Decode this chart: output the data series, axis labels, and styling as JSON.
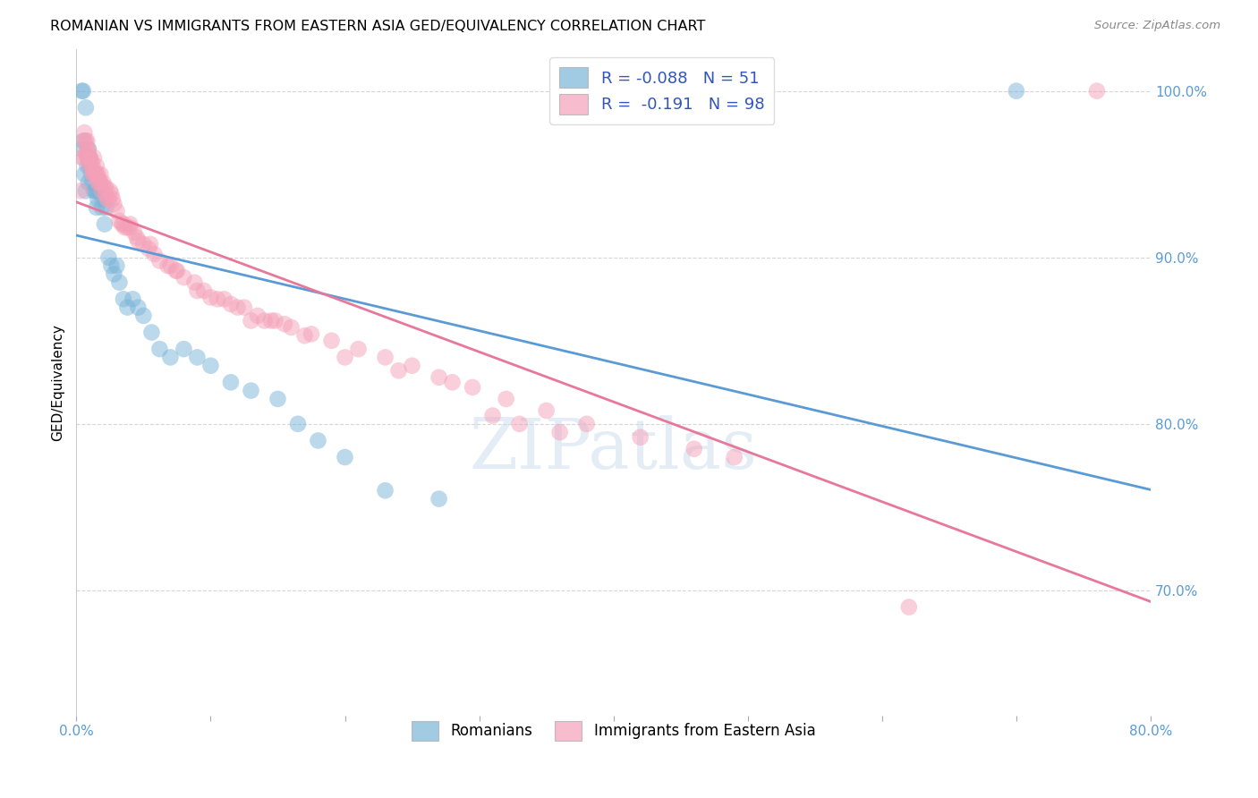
{
  "title": "ROMANIAN VS IMMIGRANTS FROM EASTERN ASIA GED/EQUIVALENCY CORRELATION CHART",
  "source": "Source: ZipAtlas.com",
  "ylabel": "GED/Equivalency",
  "xlabel": "",
  "xlim": [
    0.0,
    0.8
  ],
  "ylim": [
    0.625,
    1.025
  ],
  "yticks": [
    0.7,
    0.8,
    0.9,
    1.0
  ],
  "yticklabels": [
    "70.0%",
    "80.0%",
    "90.0%",
    "100.0%"
  ],
  "xtick_left_label": "0.0%",
  "xtick_right_label": "80.0%",
  "legend1_r": "-0.088",
  "legend1_n": "51",
  "legend2_r": "-0.191",
  "legend2_n": "98",
  "legend_sub1": "Romanians",
  "legend_sub2": "Immigrants from Eastern Asia",
  "blue_color": "#7ab4d8",
  "pink_color": "#f4a0b8",
  "blue_line_color": "#5b9bd5",
  "pink_line_color": "#e8789a",
  "watermark": "ZIPatlas",
  "blue_x": [
    0.004,
    0.004,
    0.005,
    0.005,
    0.006,
    0.007,
    0.007,
    0.008,
    0.008,
    0.009,
    0.009,
    0.01,
    0.01,
    0.011,
    0.012,
    0.013,
    0.014,
    0.015,
    0.015,
    0.016,
    0.017,
    0.018,
    0.019,
    0.02,
    0.021,
    0.022,
    0.024,
    0.026,
    0.028,
    0.03,
    0.032,
    0.035,
    0.038,
    0.042,
    0.046,
    0.05,
    0.056,
    0.062,
    0.07,
    0.08,
    0.09,
    0.1,
    0.115,
    0.13,
    0.15,
    0.165,
    0.18,
    0.2,
    0.23,
    0.27,
    0.7
  ],
  "blue_y": [
    0.965,
    1.0,
    1.0,
    0.97,
    0.95,
    0.94,
    0.99,
    0.96,
    0.955,
    0.965,
    0.945,
    0.96,
    0.955,
    0.95,
    0.945,
    0.94,
    0.94,
    0.94,
    0.93,
    0.935,
    0.94,
    0.94,
    0.93,
    0.935,
    0.92,
    0.93,
    0.9,
    0.895,
    0.89,
    0.895,
    0.885,
    0.875,
    0.87,
    0.875,
    0.87,
    0.865,
    0.855,
    0.845,
    0.84,
    0.845,
    0.84,
    0.835,
    0.825,
    0.82,
    0.815,
    0.8,
    0.79,
    0.78,
    0.76,
    0.755,
    1.0
  ],
  "pink_x": [
    0.003,
    0.004,
    0.005,
    0.006,
    0.006,
    0.007,
    0.008,
    0.008,
    0.009,
    0.009,
    0.01,
    0.01,
    0.011,
    0.012,
    0.012,
    0.013,
    0.013,
    0.014,
    0.015,
    0.015,
    0.016,
    0.016,
    0.017,
    0.018,
    0.018,
    0.019,
    0.02,
    0.021,
    0.022,
    0.023,
    0.024,
    0.025,
    0.026,
    0.028,
    0.03,
    0.032,
    0.034,
    0.036,
    0.038,
    0.04,
    0.043,
    0.046,
    0.05,
    0.054,
    0.058,
    0.062,
    0.068,
    0.074,
    0.08,
    0.088,
    0.095,
    0.105,
    0.115,
    0.125,
    0.135,
    0.148,
    0.16,
    0.175,
    0.19,
    0.21,
    0.23,
    0.25,
    0.27,
    0.295,
    0.32,
    0.35,
    0.38,
    0.42,
    0.46,
    0.49,
    0.07,
    0.09,
    0.11,
    0.13,
    0.155,
    0.31,
    0.33,
    0.36,
    0.04,
    0.055,
    0.075,
    0.12,
    0.145,
    0.28,
    0.24,
    0.2,
    0.17,
    0.14,
    0.1,
    0.045,
    0.035,
    0.027,
    0.022,
    0.016,
    0.012,
    0.008,
    0.62,
    0.76
  ],
  "pink_y": [
    0.94,
    0.96,
    0.96,
    0.97,
    0.975,
    0.97,
    0.97,
    0.965,
    0.96,
    0.965,
    0.96,
    0.955,
    0.958,
    0.955,
    0.95,
    0.95,
    0.96,
    0.95,
    0.95,
    0.955,
    0.95,
    0.945,
    0.945,
    0.945,
    0.95,
    0.94,
    0.945,
    0.942,
    0.938,
    0.935,
    0.935,
    0.94,
    0.938,
    0.932,
    0.928,
    0.922,
    0.92,
    0.918,
    0.918,
    0.918,
    0.915,
    0.91,
    0.908,
    0.905,
    0.902,
    0.898,
    0.895,
    0.892,
    0.888,
    0.885,
    0.88,
    0.875,
    0.872,
    0.87,
    0.865,
    0.862,
    0.858,
    0.854,
    0.85,
    0.845,
    0.84,
    0.835,
    0.828,
    0.822,
    0.815,
    0.808,
    0.8,
    0.792,
    0.785,
    0.78,
    0.895,
    0.88,
    0.875,
    0.862,
    0.86,
    0.805,
    0.8,
    0.795,
    0.92,
    0.908,
    0.892,
    0.87,
    0.862,
    0.825,
    0.832,
    0.84,
    0.853,
    0.862,
    0.876,
    0.912,
    0.92,
    0.935,
    0.942,
    0.948,
    0.953,
    0.962,
    0.69,
    1.0
  ]
}
